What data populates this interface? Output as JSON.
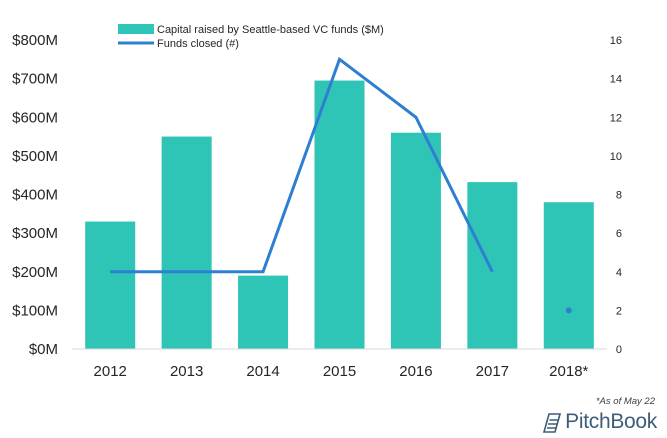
{
  "chart_data": {
    "type": "bar+line",
    "categories": [
      "2012",
      "2013",
      "2014",
      "2015",
      "2016",
      "2017",
      "2018*"
    ],
    "series": [
      {
        "name": "Capital raised by Seattle-based VC funds ($M)",
        "type": "bar",
        "axis": "left",
        "color": "#2ec4b6",
        "values": [
          330,
          550,
          190,
          695,
          560,
          432,
          380
        ]
      },
      {
        "name": "Funds closed (#)",
        "type": "line",
        "axis": "right",
        "color": "#2e7fd1",
        "values": [
          4,
          4,
          4,
          15,
          12,
          4,
          2
        ],
        "segment_break_before_index": 6
      }
    ],
    "y_left": {
      "ylim": [
        0,
        800
      ],
      "ticks": [
        0,
        100,
        200,
        300,
        400,
        500,
        600,
        700,
        800
      ],
      "tick_labels": [
        "$0M",
        "$100M",
        "$200M",
        "$300M",
        "$400M",
        "$500M",
        "$600M",
        "$700M",
        "$800M"
      ]
    },
    "y_right": {
      "ylim": [
        0,
        16
      ],
      "ticks": [
        0,
        2,
        4,
        6,
        8,
        10,
        12,
        14,
        16
      ],
      "tick_labels": [
        "0",
        "2",
        "4",
        "6",
        "8",
        "10",
        "12",
        "14",
        "16"
      ]
    },
    "legend": {
      "position": "top",
      "items": [
        {
          "label": "Capital raised by Seattle-based VC funds ($M)",
          "symbol": "bar",
          "color": "#2ec4b6"
        },
        {
          "label": "Funds closed (#)",
          "symbol": "line",
          "color": "#2e7fd1"
        }
      ]
    },
    "grid": false,
    "footnote": "*As of May 22"
  },
  "brand": {
    "logo_text": "PitchBook",
    "logo_color": "#3f5d7a"
  }
}
